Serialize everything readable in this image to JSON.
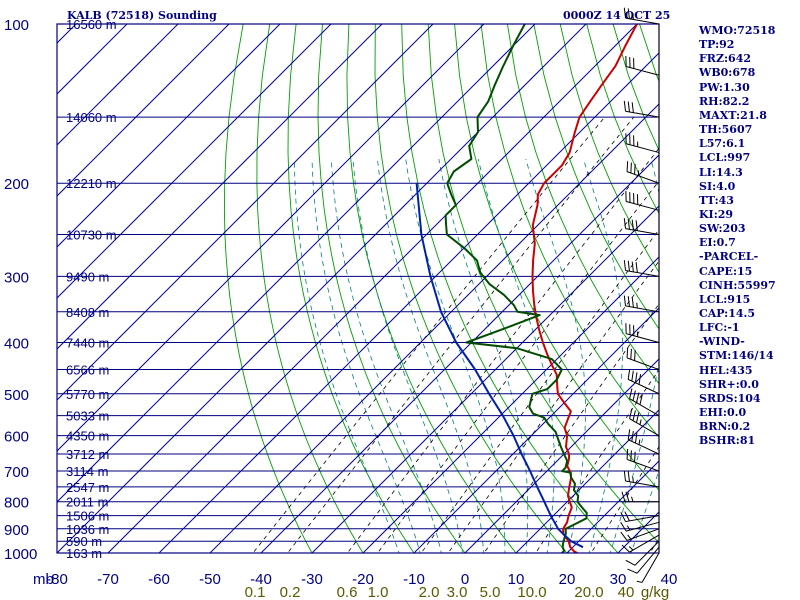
{
  "header": {
    "station": "KALB (72518) Sounding",
    "valid": "0000Z 14 OCT 25"
  },
  "colors": {
    "grid": "#000080",
    "isotherm": "#0000a0",
    "dry_adiabat": "#00a000",
    "moist_adiabat": "#008080",
    "mixing_ratio": "#000000",
    "temperature": "#cc0000",
    "dewpoint": "#004d00",
    "parcel": "#0022aa",
    "wind": "#000000",
    "mixing_label": "#5a5a00"
  },
  "stats": [
    "WMO:72518",
    "TP:92",
    "FRZ:642",
    "WB0:678",
    "PW:1.30",
    "RH:82.2",
    "MAXT:21.8",
    "TH:5607",
    "L57:6.1",
    "LCL:997",
    "LI:14.3",
    "SI:4.0",
    "TT:43",
    "KI:29",
    "SW:203",
    "EI:0.7",
    "-PARCEL-",
    "CAPE:15",
    "CINH:55997",
    "LCL:915",
    "CAP:14.5",
    "LFC:-1",
    "-WIND-",
    "STM:146/14",
    "HEL:435",
    "SHR+:0.0",
    "SRDS:104",
    "EHI:0.0",
    "BRN:0.2",
    "BSHR:81"
  ],
  "chart_data": {
    "type": "skew-t",
    "title": "KALB (72518) Sounding",
    "xlabel": "mb",
    "pressure_axis": {
      "scale": "log",
      "range_mb": [
        1000,
        100
      ],
      "ticks": [
        "100",
        "200",
        "300",
        "400",
        "500",
        "600",
        "700",
        "800",
        "900",
        "1000"
      ]
    },
    "temperature_axis": {
      "range_c": [
        -80,
        40
      ],
      "ticks": [
        "-80",
        "-70",
        "-60",
        "-50",
        "-40",
        "-30",
        "-20",
        "-10",
        "0",
        "10",
        "20",
        "30",
        "40"
      ]
    },
    "mixing_ratio_labels": [
      "0.1",
      "0.2",
      "0.6",
      "1.0",
      "2.0",
      "3.0",
      "5.0",
      "10.0",
      "20.0",
      "40",
      "g/kg"
    ],
    "height_labels": [
      {
        "p": 100,
        "label": "16560 m"
      },
      {
        "p": 150,
        "label": "14060 m"
      },
      {
        "p": 200,
        "label": "12210 m"
      },
      {
        "p": 250,
        "label": "10730 m"
      },
      {
        "p": 300,
        "label": "9490 m"
      },
      {
        "p": 350,
        "label": "8408 m"
      },
      {
        "p": 400,
        "label": "7440 m"
      },
      {
        "p": 450,
        "label": "6566 m"
      },
      {
        "p": 500,
        "label": "5770 m"
      },
      {
        "p": 550,
        "label": "5033 m"
      },
      {
        "p": 600,
        "label": "4350 m"
      },
      {
        "p": 650,
        "label": "3712 m"
      },
      {
        "p": 700,
        "label": "3114 m"
      },
      {
        "p": 750,
        "label": "2547 m"
      },
      {
        "p": 800,
        "label": "2011 m"
      },
      {
        "p": 850,
        "label": "1506 m"
      },
      {
        "p": 900,
        "label": "1036 m"
      },
      {
        "p": 950,
        "label": "590 m"
      },
      {
        "p": 1000,
        "label": "163 m"
      }
    ],
    "series": [
      {
        "points": [
          [
            1000,
            22
          ],
          [
            992,
            21
          ],
          [
            975,
            19.5
          ],
          [
            950,
            18
          ],
          [
            920,
            15.5
          ],
          [
            900,
            14.5
          ],
          [
            875,
            14
          ],
          [
            850,
            13
          ],
          [
            820,
            12
          ],
          [
            800,
            10.5
          ],
          [
            780,
            9
          ],
          [
            760,
            8
          ],
          [
            740,
            7
          ],
          [
            720,
            6
          ],
          [
            700,
            4.5
          ],
          [
            685,
            3
          ],
          [
            665,
            2
          ],
          [
            650,
            1
          ],
          [
            630,
            -1
          ],
          [
            600,
            -3
          ],
          [
            580,
            -5
          ],
          [
            560,
            -6
          ],
          [
            540,
            -7
          ],
          [
            520,
            -10
          ],
          [
            500,
            -13
          ],
          [
            480,
            -15
          ],
          [
            460,
            -17
          ],
          [
            440,
            -20
          ],
          [
            420,
            -23
          ],
          [
            400,
            -26
          ],
          [
            380,
            -29
          ],
          [
            360,
            -32
          ],
          [
            340,
            -35
          ],
          [
            320,
            -38
          ],
          [
            300,
            -41
          ],
          [
            280,
            -44
          ],
          [
            260,
            -47
          ],
          [
            240,
            -51
          ],
          [
            220,
            -54
          ],
          [
            210,
            -56
          ],
          [
            200,
            -57
          ],
          [
            192,
            -57
          ],
          [
            185,
            -57
          ],
          [
            175,
            -58
          ],
          [
            160,
            -61
          ],
          [
            150,
            -63
          ],
          [
            140,
            -64
          ],
          [
            130,
            -65
          ],
          [
            120,
            -66
          ],
          [
            110,
            -68
          ],
          [
            100,
            -70
          ]
        ]
      },
      {
        "points": [
          [
            1000,
            19
          ],
          [
            990,
            19
          ],
          [
            975,
            18
          ],
          [
            950,
            17
          ],
          [
            920,
            16
          ],
          [
            900,
            15
          ],
          [
            880,
            16
          ],
          [
            860,
            17
          ],
          [
            840,
            16
          ],
          [
            820,
            14
          ],
          [
            800,
            12
          ],
          [
            780,
            11
          ],
          [
            760,
            9
          ],
          [
            740,
            8
          ],
          [
            720,
            6
          ],
          [
            705,
            5
          ],
          [
            700,
            3
          ],
          [
            690,
            3
          ],
          [
            670,
            2
          ],
          [
            650,
            0
          ],
          [
            630,
            -2
          ],
          [
            610,
            -4
          ],
          [
            590,
            -6
          ],
          [
            570,
            -9
          ],
          [
            555,
            -11
          ],
          [
            545,
            -14
          ],
          [
            530,
            -16
          ],
          [
            515,
            -17
          ],
          [
            500,
            -18
          ],
          [
            490,
            -16
          ],
          [
            470,
            -16
          ],
          [
            450,
            -17
          ],
          [
            430,
            -21
          ],
          [
            410,
            -30
          ],
          [
            400,
            -41
          ],
          [
            385,
            -38
          ],
          [
            370,
            -35
          ],
          [
            355,
            -32
          ],
          [
            350,
            -37
          ],
          [
            340,
            -39
          ],
          [
            325,
            -43
          ],
          [
            310,
            -48
          ],
          [
            295,
            -52
          ],
          [
            280,
            -55
          ],
          [
            265,
            -60
          ],
          [
            250,
            -66
          ],
          [
            240,
            -68
          ],
          [
            230,
            -70
          ],
          [
            220,
            -70
          ],
          [
            210,
            -73
          ],
          [
            200,
            -76
          ],
          [
            190,
            -77
          ],
          [
            180,
            -76
          ],
          [
            170,
            -79
          ],
          [
            160,
            -80
          ],
          [
            150,
            -83
          ],
          [
            140,
            -84
          ],
          [
            130,
            -86
          ],
          [
            120,
            -88
          ],
          [
            110,
            -90
          ],
          [
            100,
            -92
          ]
        ]
      },
      {
        "points": [
          [
            975,
            22
          ],
          [
            950,
            18.5
          ],
          [
            930,
            16.5
          ],
          [
            915,
            15
          ],
          [
            900,
            13.5
          ],
          [
            850,
            9.5
          ],
          [
            800,
            5.5
          ],
          [
            750,
            1.2
          ],
          [
            700,
            -3.3
          ],
          [
            650,
            -8.3
          ],
          [
            600,
            -13.5
          ],
          [
            550,
            -19.5
          ],
          [
            500,
            -26.5
          ],
          [
            450,
            -34
          ],
          [
            400,
            -43
          ],
          [
            350,
            -52
          ],
          [
            300,
            -61
          ],
          [
            250,
            -71
          ],
          [
            200,
            -82
          ]
        ]
      }
    ],
    "wind_barbs": [
      {
        "p": 1000,
        "dir": 210,
        "spd": 5
      },
      {
        "p": 975,
        "dir": 220,
        "spd": 10
      },
      {
        "p": 950,
        "dir": 225,
        "spd": 10
      },
      {
        "p": 925,
        "dir": 240,
        "spd": 15
      },
      {
        "p": 900,
        "dir": 250,
        "spd": 15
      },
      {
        "p": 875,
        "dir": 255,
        "spd": 15
      },
      {
        "p": 850,
        "dir": 260,
        "spd": 20
      },
      {
        "p": 800,
        "dir": 270,
        "spd": 25
      },
      {
        "p": 750,
        "dir": 280,
        "spd": 25
      },
      {
        "p": 700,
        "dir": 290,
        "spd": 30
      },
      {
        "p": 650,
        "dir": 295,
        "spd": 35
      },
      {
        "p": 600,
        "dir": 300,
        "spd": 35
      },
      {
        "p": 550,
        "dir": 300,
        "spd": 40
      },
      {
        "p": 500,
        "dir": 295,
        "spd": 40
      },
      {
        "p": 450,
        "dir": 290,
        "spd": 30
      },
      {
        "p": 400,
        "dir": 285,
        "spd": 35
      },
      {
        "p": 350,
        "dir": 280,
        "spd": 35
      },
      {
        "p": 300,
        "dir": 280,
        "spd": 40
      },
      {
        "p": 250,
        "dir": 280,
        "spd": 40
      },
      {
        "p": 225,
        "dir": 285,
        "spd": 40
      },
      {
        "p": 200,
        "dir": 290,
        "spd": 35
      },
      {
        "p": 175,
        "dir": 285,
        "spd": 35
      },
      {
        "p": 150,
        "dir": 280,
        "spd": 30
      },
      {
        "p": 125,
        "dir": 285,
        "spd": 30
      },
      {
        "p": 100,
        "dir": 280,
        "spd": 25
      }
    ]
  }
}
